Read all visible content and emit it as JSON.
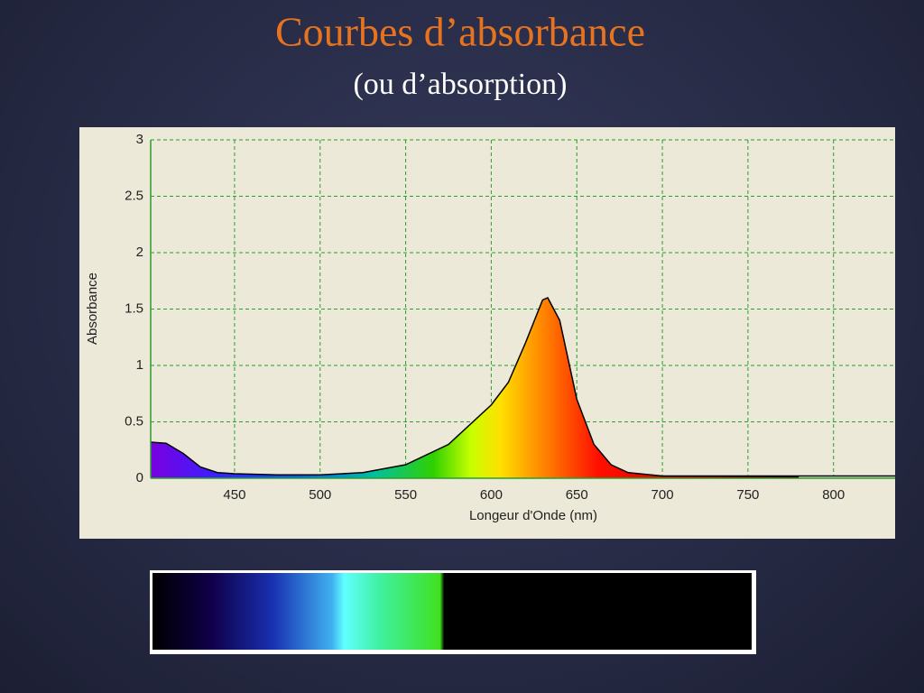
{
  "chart_data": {
    "type": "area",
    "title": "Courbes d’absorbance",
    "subtitle": "(ou d’absorption)",
    "x_label": "Longeur d'Onde (nm)",
    "y_label": "Absorbance",
    "x": [
      401,
      410,
      420,
      430,
      440,
      450,
      475,
      500,
      525,
      550,
      575,
      600,
      610,
      620,
      630,
      633,
      640,
      650,
      660,
      670,
      680,
      700,
      750,
      780,
      800,
      836
    ],
    "values": [
      0.32,
      0.31,
      0.22,
      0.1,
      0.05,
      0.04,
      0.03,
      0.03,
      0.05,
      0.12,
      0.3,
      0.65,
      0.85,
      1.2,
      1.58,
      1.6,
      1.4,
      0.7,
      0.3,
      0.12,
      0.05,
      0.02,
      0.02,
      0.02,
      0.02,
      0.02
    ],
    "xlim": [
      401,
      836
    ],
    "ylim": [
      0,
      3
    ],
    "xticks": [
      450,
      500,
      550,
      600,
      650,
      700,
      750,
      800
    ],
    "yticks": [
      0,
      0.5,
      1,
      1.5,
      2,
      2.5,
      3
    ],
    "grid": true,
    "grid_color": "#2aa02a",
    "line_color": "#000000"
  }
}
